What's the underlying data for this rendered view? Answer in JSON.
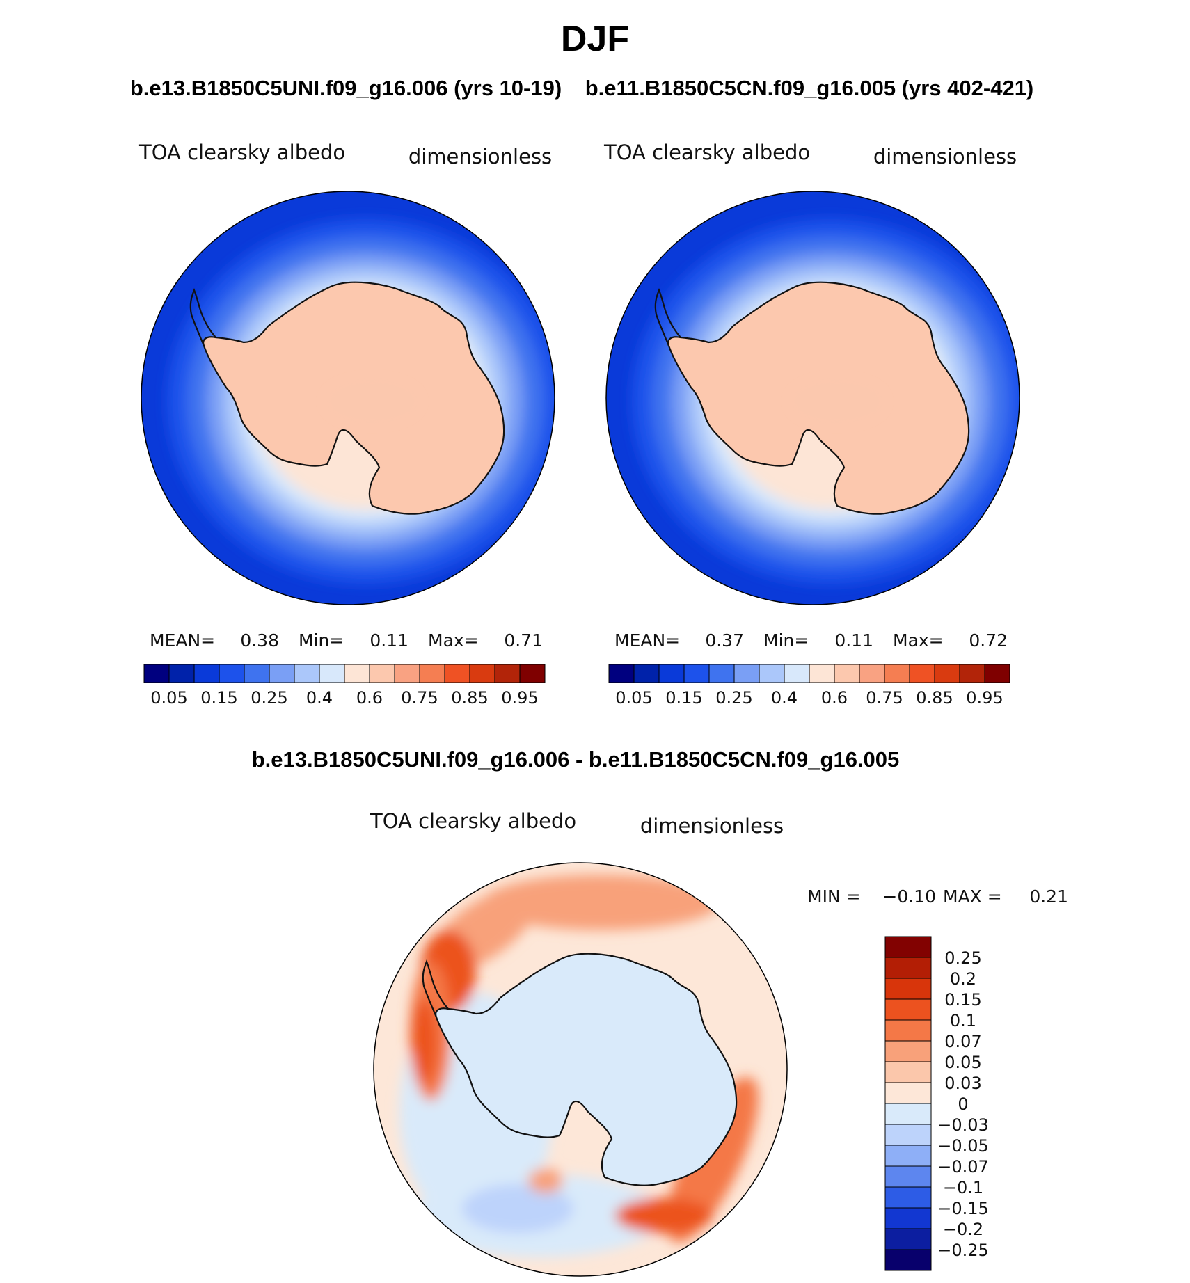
{
  "season": "DJF",
  "colors": {
    "coastline": "#111111",
    "frame": "#000000",
    "abs_levels": [
      "#00007f",
      "#0022aa",
      "#0a3ad9",
      "#1d52eb",
      "#3f73ef",
      "#7a9ff5",
      "#abc7fa",
      "#d8e8fb",
      "#fde5d6",
      "#fcc8ae",
      "#f9a282",
      "#f57e52",
      "#ef5224",
      "#d93b10",
      "#b22409",
      "#7f0000"
    ],
    "diff_levels": [
      "#08006c",
      "#0c1ea0",
      "#1237d1",
      "#2d5ce6",
      "#5d86ef",
      "#8eaff7",
      "#bdd3fb",
      "#d9eafa",
      "#fde7d8",
      "#fbc7ab",
      "#f8a17a",
      "#f47847",
      "#ec521f",
      "#d8350b",
      "#b31e05",
      "#820201"
    ]
  },
  "panels": [
    {
      "id": "case1",
      "case_title": "b.e13.B1850C5UNI.f09_g16.006 (yrs 10-19)",
      "variable": "TOA clearsky albedo",
      "units": "dimensionless",
      "stats": {
        "mean_label": "MEAN=",
        "mean": "0.38",
        "min_label": "Min=",
        "min": "0.11",
        "max_label": "Max=",
        "max": "0.71"
      },
      "colorbar_labels": [
        "0.05",
        "0.15",
        "0.25",
        "0.4",
        "0.6",
        "0.75",
        "0.85",
        "0.95"
      ],
      "field": {
        "antarctica": 0.62,
        "interior_high": 0.66,
        "shelf_ice": 0.5,
        "ring_levels": [
          0.45,
          0.4,
          0.3,
          0.25,
          0.2,
          0.15
        ]
      }
    },
    {
      "id": "case2",
      "case_title": "b.e11.B1850C5CN.f09_g16.005 (yrs 402-421)",
      "variable": "TOA clearsky albedo",
      "units": "dimensionless",
      "stats": {
        "mean_label": "MEAN=",
        "mean": "0.37",
        "min_label": "Min=",
        "min": "0.11",
        "max_label": "Max=",
        "max": "0.72"
      },
      "colorbar_labels": [
        "0.05",
        "0.15",
        "0.25",
        "0.4",
        "0.6",
        "0.75",
        "0.85",
        "0.95"
      ],
      "field": {
        "antarctica": 0.65,
        "interior_high": 0.69,
        "shelf_ice": 0.5,
        "ring_levels": [
          0.45,
          0.4,
          0.3,
          0.25,
          0.2,
          0.15
        ]
      }
    }
  ],
  "difference": {
    "title": "b.e13.B1850C5UNI.f09_g16.006 - b.e11.B1850C5CN.f09_g16.005",
    "variable": "TOA clearsky albedo",
    "units": "dimensionless",
    "stats": {
      "min_label": "MIN =",
      "min": "−0.10",
      "max_label": "MAX =",
      "max": "0.21"
    },
    "colorbar_labels": [
      "0.25",
      "0.2",
      "0.15",
      "0.1",
      "0.07",
      "0.05",
      "0.03",
      "0",
      "−0.03",
      "−0.05",
      "−0.07",
      "−0.1",
      "−0.15",
      "−0.2",
      "−0.25"
    ]
  }
}
